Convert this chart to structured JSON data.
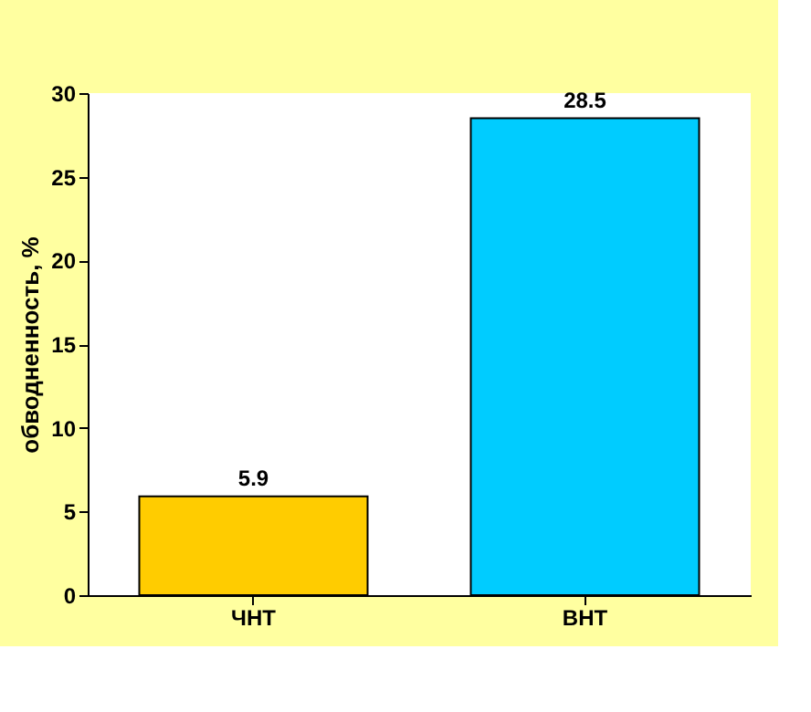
{
  "chart_data": {
    "type": "bar",
    "ylabel": "обводненность, %",
    "categories": [
      "ЧНТ",
      "ВНТ"
    ],
    "values": [
      5.9,
      28.5
    ],
    "colors": [
      "#ffcc00",
      "#00ccff"
    ],
    "ylim": [
      0,
      30
    ],
    "yticks": [
      0,
      5,
      10,
      15,
      20,
      25,
      30
    ],
    "data_labels": true,
    "grid": false
  }
}
